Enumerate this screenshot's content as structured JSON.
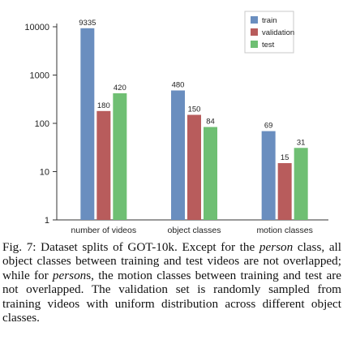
{
  "chart_data": {
    "type": "bar",
    "categories": [
      "number of videos",
      "object classes",
      "motion classes"
    ],
    "series": [
      {
        "name": "train",
        "values": [
          9335,
          480,
          69
        ],
        "color": "#6a8ebf"
      },
      {
        "name": "validation",
        "values": [
          180,
          150,
          15
        ],
        "color": "#b85c5c"
      },
      {
        "name": "test",
        "values": [
          420,
          84,
          31
        ],
        "color": "#6fbf73"
      }
    ],
    "yscale": "log",
    "ylim": [
      1,
      10000
    ],
    "yticks": [
      "1",
      "10",
      "100",
      "1000",
      "10000"
    ],
    "grid": false,
    "legend_position": "top-right",
    "title": "",
    "xlabel": "",
    "ylabel": ""
  },
  "caption": {
    "p1": "Fig. 7: Dataset splits of GOT-10k. Except for the ",
    "em1": "person",
    "p2": " class, all object classes between training and test videos are not overlapped; while for ",
    "em2": "person",
    "p3": "s, the motion classes between training and test are not overlapped. The validation set is randomly sampled from training videos with uniform distribution across different object classes."
  }
}
